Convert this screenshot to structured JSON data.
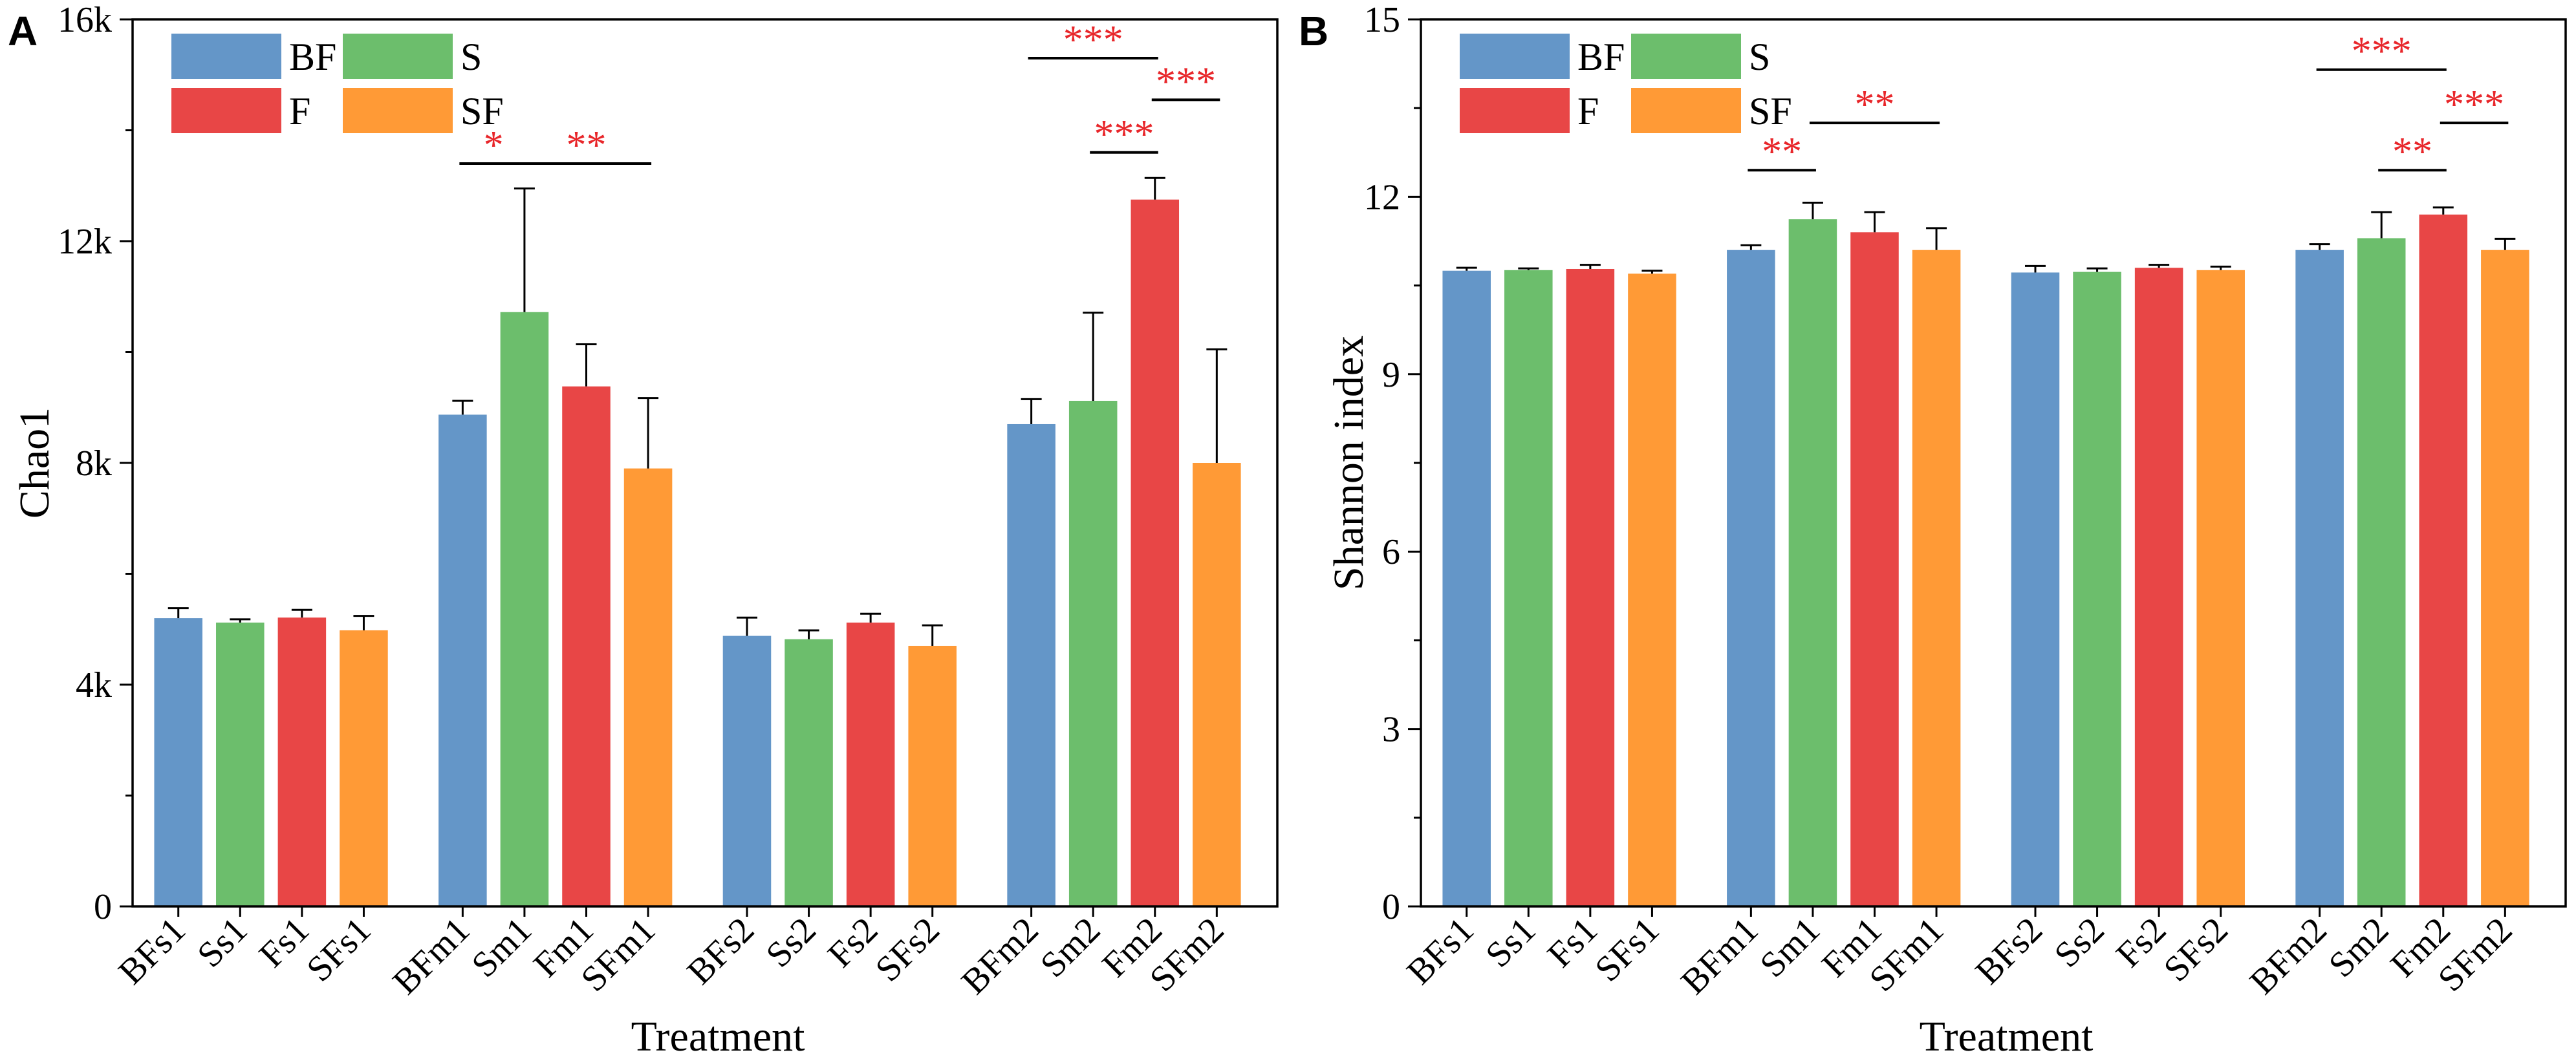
{
  "colors": {
    "BF": "#6496c8",
    "S": "#6cbe6c",
    "F": "#e84646",
    "SF": "#ff9a36",
    "sig": "#e8262a"
  },
  "chart_data": [
    {
      "type": "bar",
      "panel_label": "A",
      "categories": [
        "BFs1",
        "Ss1",
        "Fs1",
        "SFs1",
        "BFm1",
        "Sm1",
        "Fm1",
        "SFm1",
        "BFs2",
        "Ss2",
        "Fs2",
        "SFs2",
        "BFm2",
        "Sm2",
        "Fm2",
        "SFm2"
      ],
      "groups": [
        "BF",
        "S",
        "F",
        "SF",
        "BF",
        "S",
        "F",
        "SF",
        "BF",
        "S",
        "F",
        "SF",
        "BF",
        "S",
        "F",
        "SF"
      ],
      "values": [
        5200,
        5120,
        5210,
        4980,
        8870,
        10720,
        9380,
        7900,
        4880,
        4820,
        5120,
        4700,
        8700,
        9120,
        12750,
        8000
      ],
      "errors": [
        180,
        60,
        140,
        260,
        250,
        2230,
        760,
        1270,
        330,
        160,
        160,
        370,
        450,
        1590,
        390,
        2050
      ],
      "ylabel": "Chao1",
      "xlabel": "Treatment",
      "ylim": [
        0,
        16000
      ],
      "yticks": [
        0,
        4000,
        8000,
        12000,
        16000
      ],
      "ytick_labels": [
        "0",
        "4k",
        "8k",
        "12k",
        "16k"
      ],
      "legend": [
        "BF",
        "S",
        "F",
        "SF"
      ],
      "legend_position": "top-left",
      "significance": [
        {
          "from": 4,
          "to": 5,
          "value": 13400,
          "label": "*"
        },
        {
          "from": 5,
          "to": 7,
          "value": 13400,
          "label": "**"
        },
        {
          "from": 12,
          "to": 14,
          "value": 15300,
          "label": "***"
        },
        {
          "from": 13,
          "to": 14,
          "value": 13600,
          "label": "***"
        },
        {
          "from": 14,
          "to": 15,
          "value": 14550,
          "label": "***"
        }
      ]
    },
    {
      "type": "bar",
      "panel_label": "B",
      "categories": [
        "BFs1",
        "Ss1",
        "Fs1",
        "SFs1",
        "BFm1",
        "Sm1",
        "Fm1",
        "SFm1",
        "BFs2",
        "Ss2",
        "Fs2",
        "SFs2",
        "BFm2",
        "Sm2",
        "Fm2",
        "SFm2"
      ],
      "groups": [
        "BF",
        "S",
        "F",
        "SF",
        "BF",
        "S",
        "F",
        "SF",
        "BF",
        "S",
        "F",
        "SF",
        "BF",
        "S",
        "F",
        "SF"
      ],
      "values": [
        10.75,
        10.76,
        10.78,
        10.7,
        11.1,
        11.62,
        11.4,
        11.1,
        10.72,
        10.73,
        10.8,
        10.76,
        11.1,
        11.3,
        11.7,
        11.1
      ],
      "errors": [
        0.05,
        0.03,
        0.07,
        0.05,
        0.08,
        0.28,
        0.34,
        0.37,
        0.11,
        0.06,
        0.05,
        0.06,
        0.1,
        0.44,
        0.12,
        0.19
      ],
      "ylabel": "Shannon index",
      "xlabel": "Treatment",
      "ylim": [
        0,
        15
      ],
      "yticks": [
        0,
        3,
        6,
        9,
        12,
        15
      ],
      "ytick_labels": [
        "0",
        "3",
        "6",
        "9",
        "12",
        "15"
      ],
      "legend": [
        "BF",
        "S",
        "F",
        "SF"
      ],
      "legend_position": "top-left",
      "significance": [
        {
          "from": 4,
          "to": 5,
          "value": 12.45,
          "label": "**"
        },
        {
          "from": 5,
          "to": 7,
          "value": 13.25,
          "label": "**"
        },
        {
          "from": 12,
          "to": 14,
          "value": 14.15,
          "label": "***"
        },
        {
          "from": 13,
          "to": 14,
          "value": 12.45,
          "label": "**"
        },
        {
          "from": 14,
          "to": 15,
          "value": 13.25,
          "label": "***"
        }
      ]
    }
  ]
}
